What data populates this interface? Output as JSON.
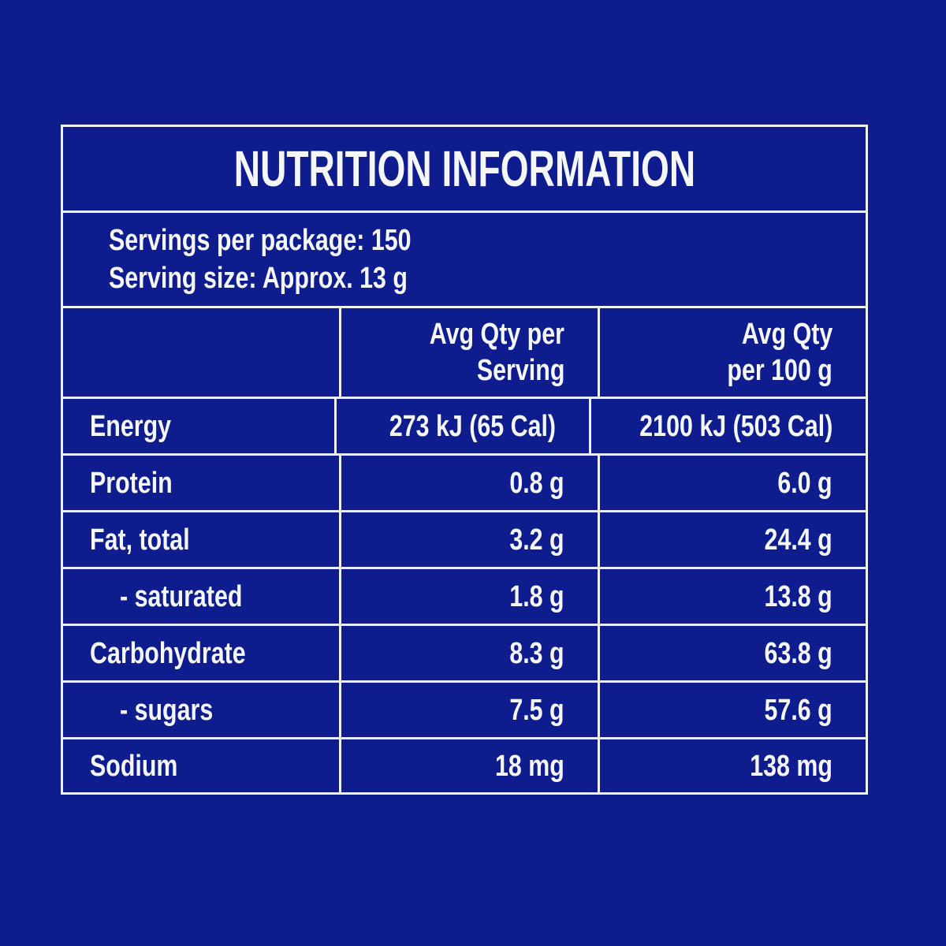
{
  "title": "NUTRITION INFORMATION",
  "serving_info": {
    "servings_per_package": "Servings per package: 150",
    "serving_size": "Serving size: Approx. 13 g"
  },
  "columns": {
    "per_serving": {
      "line1": "Avg Qty per",
      "line2": "Serving"
    },
    "per_100g": {
      "line1": "Avg Qty",
      "line2": "per 100 g"
    }
  },
  "rows": [
    {
      "label": "Energy",
      "per_serving": "273 kJ (65 Cal)",
      "per_100g": "2100 kJ (503 Cal)"
    },
    {
      "label": "Protein",
      "per_serving": "0.8 g",
      "per_100g": "6.0 g"
    },
    {
      "label": "Fat, total",
      "per_serving": "3.2 g",
      "per_100g": "24.4 g"
    },
    {
      "label": "- saturated",
      "per_serving": "1.8 g",
      "per_100g": "13.8 g"
    },
    {
      "label": "Carbohydrate",
      "per_serving": "8.3 g",
      "per_100g": "63.8 g"
    },
    {
      "label": "- sugars",
      "per_serving": "7.5 g",
      "per_100g": "57.6 g"
    },
    {
      "label": "Sodium",
      "per_serving": "18 mg",
      "per_100g": "138 mg"
    }
  ],
  "colors": {
    "background": "#0E1C8E",
    "border": "#EFF3F8",
    "text": "#F4F6FA"
  }
}
